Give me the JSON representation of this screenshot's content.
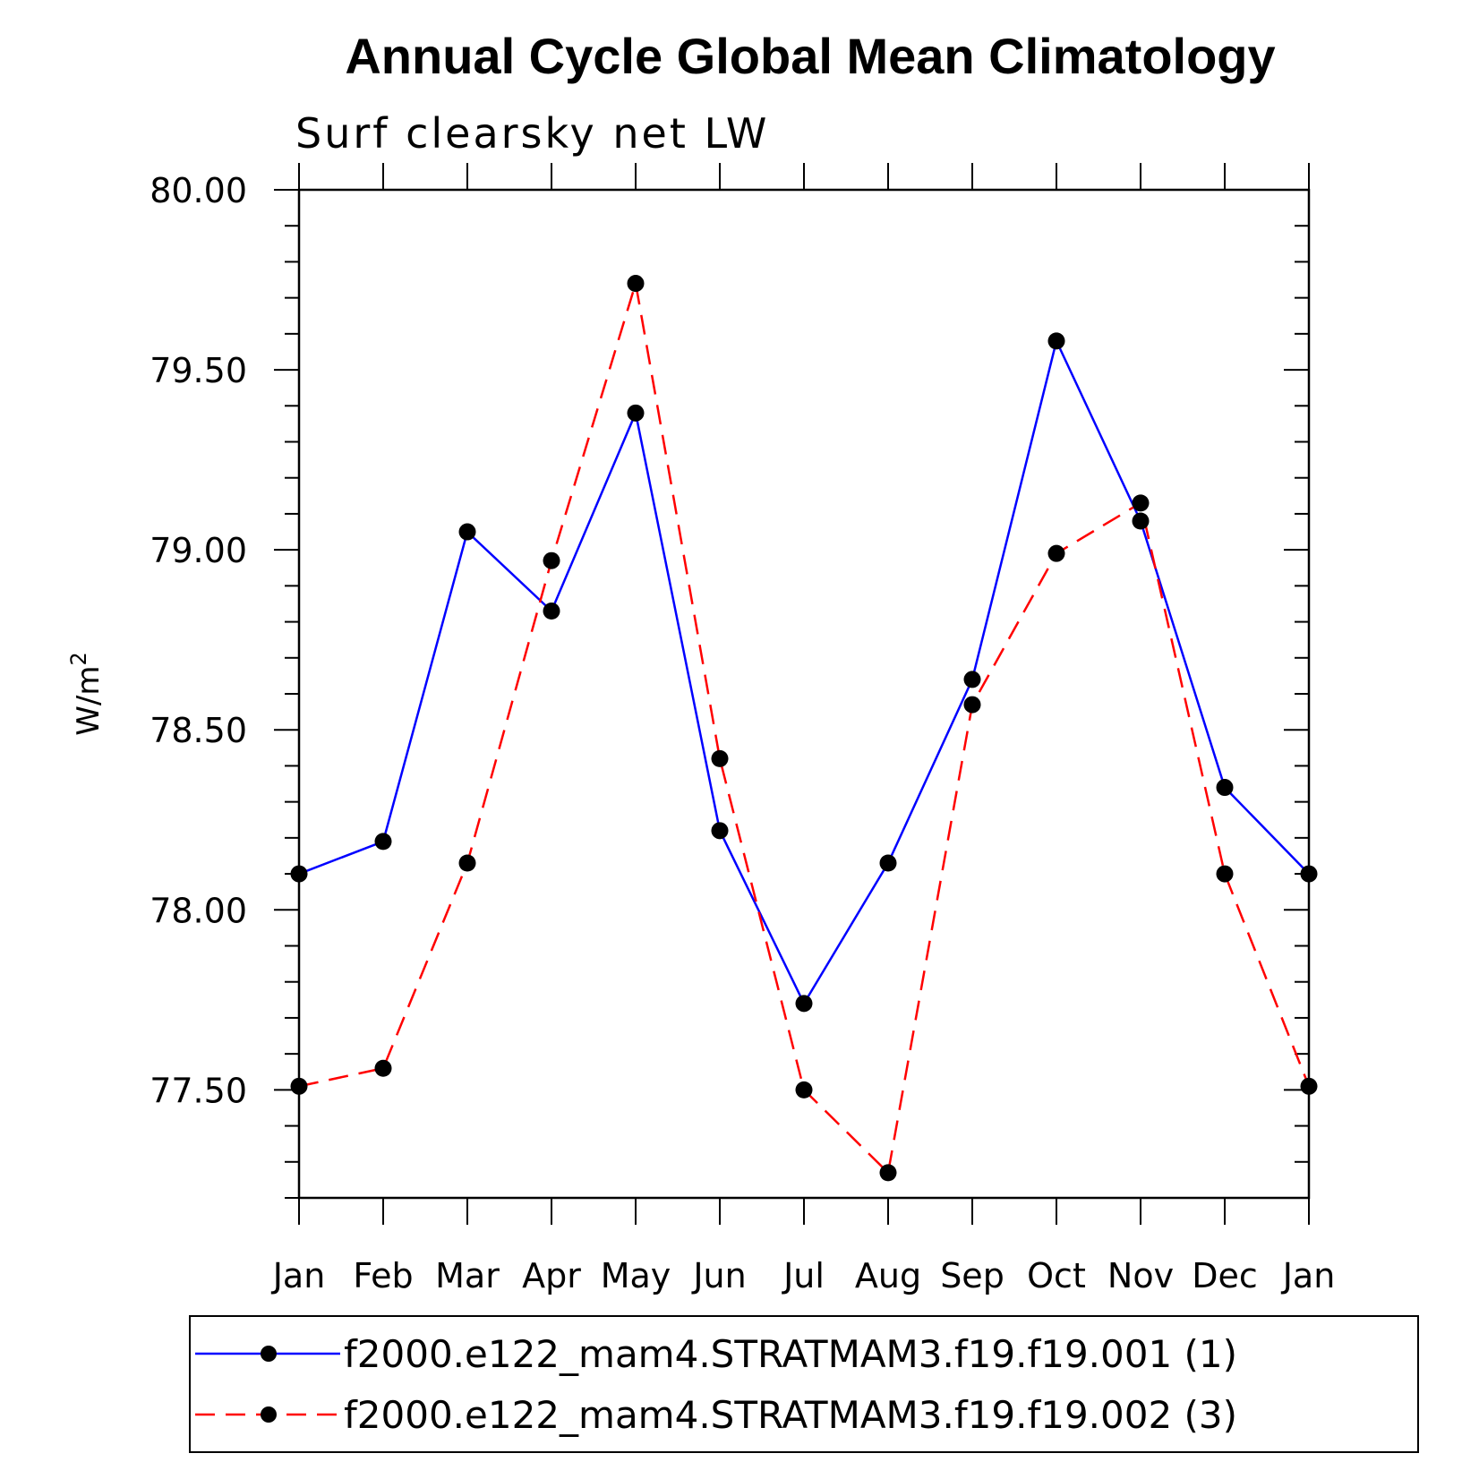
{
  "chart_data": {
    "type": "line",
    "title": "Annual Cycle Global Mean Climatology",
    "subtitle": "Surf clearsky net LW",
    "ylabel": "W/m",
    "ylabel_superscript": "2",
    "categories": [
      "Jan",
      "Feb",
      "Mar",
      "Apr",
      "May",
      "Jun",
      "Jul",
      "Aug",
      "Sep",
      "Oct",
      "Nov",
      "Dec",
      "Jan"
    ],
    "ylim": [
      77.2,
      80.0
    ],
    "yticks": [
      "80.00",
      "79.50",
      "79.00",
      "78.50",
      "78.00",
      "77.50"
    ],
    "ytick_values": [
      80.0,
      79.5,
      79.0,
      78.5,
      78.0,
      77.5
    ],
    "series": [
      {
        "name": "f2000.e122_mam4.STRATMAM3.f19.f19.001 (1)",
        "color": "#0000ff",
        "dash": "solid",
        "values": [
          78.1,
          78.19,
          79.05,
          78.83,
          79.38,
          78.22,
          77.74,
          78.13,
          78.64,
          79.58,
          79.08,
          78.34,
          78.1
        ]
      },
      {
        "name": "f2000.e122_mam4.STRATMAM3.f19.f19.002 (3)",
        "color": "#ff0000",
        "dash": "dashed",
        "values": [
          77.51,
          77.56,
          78.13,
          78.97,
          79.74,
          78.42,
          77.5,
          77.27,
          78.57,
          78.99,
          79.13,
          78.1,
          77.51
        ]
      }
    ],
    "marker_color": "#000000"
  }
}
